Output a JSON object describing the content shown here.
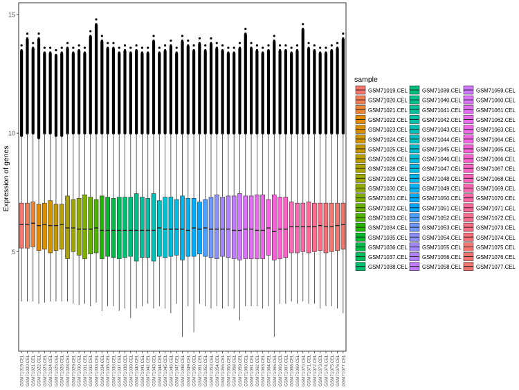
{
  "chart_data": {
    "type": "boxplot",
    "ylabel": "Expression of genes",
    "xlabel": "",
    "ylim": [
      0.8,
      15.5
    ],
    "yticks": [
      5,
      10,
      15
    ],
    "legend_title": "sample",
    "legend_position": "right",
    "grid": false,
    "categories": [
      "GSM71019.CEL",
      "GSM71020.CEL",
      "GSM71021.CEL",
      "GSM71022.CEL",
      "GSM71023.CEL",
      "GSM71024.CEL",
      "GSM71025.CEL",
      "GSM71026.CEL",
      "GSM71028.CEL",
      "GSM71029.CEL",
      "GSM71030.CEL",
      "GSM71031.CEL",
      "GSM71032.CEL",
      "GSM71033.CEL",
      "GSM71034.CEL",
      "GSM71035.CEL",
      "GSM71036.CEL",
      "GSM71037.CEL",
      "GSM71038.CEL",
      "GSM71039.CEL",
      "GSM71040.CEL",
      "GSM71041.CEL",
      "GSM71042.CEL",
      "GSM71043.CEL",
      "GSM71044.CEL",
      "GSM71045.CEL",
      "GSM71046.CEL",
      "GSM71047.CEL",
      "GSM71048.CEL",
      "GSM71049.CEL",
      "GSM71050.CEL",
      "GSM71051.CEL",
      "GSM71052.CEL",
      "GSM71053.CEL",
      "GSM71054.CEL",
      "GSM71055.CEL",
      "GSM71056.CEL",
      "GSM71058.CEL",
      "GSM71059.CEL",
      "GSM71060.CEL",
      "GSM71061.CEL",
      "GSM71062.CEL",
      "GSM71063.CEL",
      "GSM71064.CEL",
      "GSM71065.CEL",
      "GSM71066.CEL",
      "GSM71067.CEL",
      "GSM71068.CEL",
      "GSM71069.CEL",
      "GSM71070.CEL",
      "GSM71071.CEL",
      "GSM71072.CEL",
      "GSM71073.CEL",
      "GSM71074.CEL",
      "GSM71075.CEL",
      "GSM71076.CEL",
      "GSM71077.CEL"
    ],
    "colors": [
      "#F8766D",
      "#F27D52",
      "#EB8335",
      "#E38900",
      "#DA8F00",
      "#D09400",
      "#C59900",
      "#B99E00",
      "#ACA300",
      "#9EA700",
      "#8FAA00",
      "#7DAE00",
      "#68B100",
      "#4FB400",
      "#24B700",
      "#00B92A",
      "#00BB48",
      "#00BD5C",
      "#00BE6D",
      "#00C07D",
      "#00C08C",
      "#00C19A",
      "#00C1A8",
      "#00C1B5",
      "#00C0C2",
      "#00BFCE",
      "#00BDD9",
      "#00BAE3",
      "#00B6ED",
      "#00B2F6",
      "#00ACFC",
      "#00A6FF",
      "#4C9FFF",
      "#7198FF",
      "#8C90FF",
      "#A188FF",
      "#B383FF",
      "#C27CFF",
      "#CF78FF",
      "#DA72FB",
      "#E36EF6",
      "#EA6AF0",
      "#F066E9",
      "#F564E2",
      "#F963D9",
      "#FC63D0",
      "#FE64C6",
      "#FF65BC",
      "#FF66B1",
      "#FF68A6",
      "#FF6A9A",
      "#FE6C8F",
      "#FC6E84",
      "#FA7079",
      "#F8766D",
      "#F47570",
      "#F0766D"
    ],
    "series": [
      {
        "name": "GSM71019.CEL",
        "min": 2.9,
        "q1": 5.15,
        "median": 6.15,
        "q3": 7.05,
        "max": 9.9,
        "outlier_top": 13.7
      },
      {
        "name": "GSM71020.CEL",
        "min": 2.9,
        "q1": 5.15,
        "median": 6.15,
        "q3": 7.05,
        "max": 10.0,
        "outlier_top": 14.2
      },
      {
        "name": "GSM71021.CEL",
        "min": 2.9,
        "q1": 5.2,
        "median": 6.2,
        "q3": 7.1,
        "max": 10.0,
        "outlier_top": 13.8
      },
      {
        "name": "GSM71022.CEL",
        "min": 2.8,
        "q1": 5.05,
        "median": 6.1,
        "q3": 7.0,
        "max": 9.8,
        "outlier_top": 14.2
      },
      {
        "name": "GSM71023.CEL",
        "min": 2.85,
        "q1": 5.1,
        "median": 6.15,
        "q3": 7.05,
        "max": 10.0,
        "outlier_top": 13.6
      },
      {
        "name": "GSM71024.CEL",
        "min": 2.9,
        "q1": 4.95,
        "median": 6.1,
        "q3": 7.15,
        "max": 10.0,
        "outlier_top": 13.6
      },
      {
        "name": "GSM71025.CEL",
        "min": 2.9,
        "q1": 5.05,
        "median": 6.1,
        "q3": 7.0,
        "max": 9.9,
        "outlier_top": 13.5
      },
      {
        "name": "GSM71026.CEL",
        "min": 2.9,
        "q1": 5.1,
        "median": 6.15,
        "q3": 7.0,
        "max": 9.9,
        "outlier_top": 13.6
      },
      {
        "name": "GSM71028.CEL",
        "min": 2.9,
        "q1": 4.7,
        "median": 6.0,
        "q3": 7.35,
        "max": 10.0,
        "outlier_top": 13.8
      },
      {
        "name": "GSM71029.CEL",
        "min": 2.8,
        "q1": 5.0,
        "median": 6.0,
        "q3": 7.2,
        "max": 10.0,
        "outlier_top": 13.6
      },
      {
        "name": "GSM71030.CEL",
        "min": 2.75,
        "q1": 4.85,
        "median": 5.95,
        "q3": 7.25,
        "max": 10.0,
        "outlier_top": 13.7
      },
      {
        "name": "GSM71031.CEL",
        "min": 2.8,
        "q1": 4.7,
        "median": 5.95,
        "q3": 7.4,
        "max": 10.0,
        "outlier_top": 13.6
      },
      {
        "name": "GSM71032.CEL",
        "min": 2.7,
        "q1": 4.9,
        "median": 5.95,
        "q3": 7.3,
        "max": 10.0,
        "outlier_top": 14.3
      },
      {
        "name": "GSM71033.CEL",
        "min": 2.85,
        "q1": 4.95,
        "median": 6.0,
        "q3": 7.2,
        "max": 10.0,
        "outlier_top": 14.8
      },
      {
        "name": "GSM71034.CEL",
        "min": 2.5,
        "q1": 4.7,
        "median": 5.9,
        "q3": 7.35,
        "max": 10.0,
        "outlier_top": 14.1
      },
      {
        "name": "GSM71035.CEL",
        "min": 2.7,
        "q1": 4.8,
        "median": 5.9,
        "q3": 7.3,
        "max": 10.0,
        "outlier_top": 13.8
      },
      {
        "name": "GSM71036.CEL",
        "min": 2.7,
        "q1": 4.75,
        "median": 5.9,
        "q3": 7.25,
        "max": 10.0,
        "outlier_top": 13.8
      },
      {
        "name": "GSM71037.CEL",
        "min": 2.5,
        "q1": 4.7,
        "median": 5.9,
        "q3": 7.3,
        "max": 10.0,
        "outlier_top": 13.6
      },
      {
        "name": "GSM71038.CEL",
        "min": 2.6,
        "q1": 4.75,
        "median": 5.9,
        "q3": 7.3,
        "max": 10.0,
        "outlier_top": 13.7
      },
      {
        "name": "GSM71039.CEL",
        "min": 2.2,
        "q1": 4.8,
        "median": 5.9,
        "q3": 7.3,
        "max": 10.0,
        "outlier_top": 13.6
      },
      {
        "name": "GSM71040.CEL",
        "min": 2.6,
        "q1": 4.6,
        "median": 5.9,
        "q3": 7.45,
        "max": 10.0,
        "outlier_top": 13.7
      },
      {
        "name": "GSM71041.CEL",
        "min": 2.7,
        "q1": 4.75,
        "median": 5.9,
        "q3": 7.3,
        "max": 10.0,
        "outlier_top": 13.6
      },
      {
        "name": "GSM71042.CEL",
        "min": 2.8,
        "q1": 4.75,
        "median": 5.9,
        "q3": 7.25,
        "max": 10.0,
        "outlier_top": 13.6
      },
      {
        "name": "GSM71043.CEL",
        "min": 2.6,
        "q1": 4.6,
        "median": 5.9,
        "q3": 7.45,
        "max": 10.0,
        "outlier_top": 14.1
      },
      {
        "name": "GSM71044.CEL",
        "min": 2.7,
        "q1": 4.8,
        "median": 6.0,
        "q3": 7.15,
        "max": 10.0,
        "outlier_top": 13.6
      },
      {
        "name": "GSM71045.CEL",
        "min": 2.6,
        "q1": 4.75,
        "median": 5.95,
        "q3": 7.3,
        "max": 10.0,
        "outlier_top": 13.7
      },
      {
        "name": "GSM71046.CEL",
        "min": 2.4,
        "q1": 4.8,
        "median": 5.95,
        "q3": 7.3,
        "max": 10.0,
        "outlier_top": 13.9
      },
      {
        "name": "GSM71047.CEL",
        "min": 2.8,
        "q1": 4.85,
        "median": 5.95,
        "q3": 7.2,
        "max": 10.0,
        "outlier_top": 13.6
      },
      {
        "name": "GSM71048.CEL",
        "min": 1.4,
        "q1": 4.65,
        "median": 5.95,
        "q3": 7.35,
        "max": 10.0,
        "outlier_top": 14.1
      },
      {
        "name": "GSM71049.CEL",
        "min": 2.7,
        "q1": 4.8,
        "median": 5.9,
        "q3": 7.25,
        "max": 10.0,
        "outlier_top": 13.9
      },
      {
        "name": "GSM71050.CEL",
        "min": 1.6,
        "q1": 4.8,
        "median": 6.0,
        "q3": 7.25,
        "max": 10.0,
        "outlier_top": 13.7
      },
      {
        "name": "GSM71051.CEL",
        "min": 2.8,
        "q1": 4.9,
        "median": 5.95,
        "q3": 7.1,
        "max": 10.0,
        "outlier_top": 14.0
      },
      {
        "name": "GSM71052.CEL",
        "min": 2.7,
        "q1": 4.8,
        "median": 6.0,
        "q3": 7.2,
        "max": 10.0,
        "outlier_top": 13.7
      },
      {
        "name": "GSM71053.CEL",
        "min": 2.6,
        "q1": 4.75,
        "median": 5.95,
        "q3": 7.3,
        "max": 10.0,
        "outlier_top": 14.0
      },
      {
        "name": "GSM71054.CEL",
        "min": 2.7,
        "q1": 4.7,
        "median": 5.95,
        "q3": 7.4,
        "max": 10.0,
        "outlier_top": 13.8
      },
      {
        "name": "GSM71055.CEL",
        "min": 2.6,
        "q1": 4.8,
        "median": 5.95,
        "q3": 7.3,
        "max": 10.0,
        "outlier_top": 13.7
      },
      {
        "name": "GSM71056.CEL",
        "min": 2.7,
        "q1": 4.75,
        "median": 5.95,
        "q3": 7.35,
        "max": 10.0,
        "outlier_top": 13.6
      },
      {
        "name": "GSM71058.CEL",
        "min": 2.6,
        "q1": 4.7,
        "median": 5.9,
        "q3": 7.35,
        "max": 10.0,
        "outlier_top": 13.6
      },
      {
        "name": "GSM71059.CEL",
        "min": 2.1,
        "q1": 4.65,
        "median": 5.9,
        "q3": 7.45,
        "max": 10.0,
        "outlier_top": 13.8
      },
      {
        "name": "GSM71060.CEL",
        "min": 2.7,
        "q1": 4.7,
        "median": 5.95,
        "q3": 7.35,
        "max": 10.0,
        "outlier_top": 14.4
      },
      {
        "name": "GSM71061.CEL",
        "min": 2.7,
        "q1": 4.7,
        "median": 5.95,
        "q3": 7.35,
        "max": 10.0,
        "outlier_top": 13.8
      },
      {
        "name": "GSM71062.CEL",
        "min": 2.7,
        "q1": 4.7,
        "median": 5.9,
        "q3": 7.4,
        "max": 10.0,
        "outlier_top": 13.7
      },
      {
        "name": "GSM71063.CEL",
        "min": 2.6,
        "q1": 4.7,
        "median": 5.9,
        "q3": 7.4,
        "max": 10.0,
        "outlier_top": 13.6
      },
      {
        "name": "GSM71064.CEL",
        "min": 2.7,
        "q1": 4.85,
        "median": 6.0,
        "q3": 7.2,
        "max": 10.0,
        "outlier_top": 13.7
      },
      {
        "name": "GSM71065.CEL",
        "min": 1.4,
        "q1": 4.65,
        "median": 5.85,
        "q3": 7.4,
        "max": 10.0,
        "outlier_top": 14.1
      },
      {
        "name": "GSM71066.CEL",
        "min": 2.8,
        "q1": 4.7,
        "median": 5.95,
        "q3": 7.3,
        "max": 10.0,
        "outlier_top": 13.7
      },
      {
        "name": "GSM71067.CEL",
        "min": 2.8,
        "q1": 4.75,
        "median": 5.95,
        "q3": 7.3,
        "max": 10.0,
        "outlier_top": 13.7
      },
      {
        "name": "GSM71068.CEL",
        "min": 2.9,
        "q1": 4.95,
        "median": 6.05,
        "q3": 7.1,
        "max": 10.0,
        "outlier_top": 13.6
      },
      {
        "name": "GSM71069.CEL",
        "min": 2.8,
        "q1": 4.95,
        "median": 6.05,
        "q3": 7.05,
        "max": 10.0,
        "outlier_top": 13.7
      },
      {
        "name": "GSM71070.CEL",
        "min": 2.9,
        "q1": 5.0,
        "median": 6.05,
        "q3": 7.05,
        "max": 10.0,
        "outlier_top": 14.6
      },
      {
        "name": "GSM71071.CEL",
        "min": 2.8,
        "q1": 4.95,
        "median": 6.05,
        "q3": 7.1,
        "max": 10.0,
        "outlier_top": 13.8
      },
      {
        "name": "GSM71072.CEL",
        "min": 2.8,
        "q1": 5.0,
        "median": 6.05,
        "q3": 7.05,
        "max": 10.0,
        "outlier_top": 13.7
      },
      {
        "name": "GSM71073.CEL",
        "min": 2.6,
        "q1": 5.05,
        "median": 6.1,
        "q3": 7.05,
        "max": 10.0,
        "outlier_top": 13.6
      },
      {
        "name": "GSM71074.CEL",
        "min": 2.7,
        "q1": 4.95,
        "median": 6.05,
        "q3": 7.05,
        "max": 10.0,
        "outlier_top": 13.6
      },
      {
        "name": "GSM71075.CEL",
        "min": 2.7,
        "q1": 5.0,
        "median": 6.05,
        "q3": 7.05,
        "max": 10.0,
        "outlier_top": 13.7
      },
      {
        "name": "GSM71076.CEL",
        "min": 2.6,
        "q1": 5.05,
        "median": 6.1,
        "q3": 7.05,
        "max": 10.0,
        "outlier_top": 13.8
      },
      {
        "name": "GSM71077.CEL",
        "min": 2.4,
        "q1": 5.1,
        "median": 6.15,
        "q3": 7.05,
        "max": 10.0,
        "outlier_top": 14.2
      }
    ],
    "legend_entries": [
      "GSM71019.CEL",
      "GSM71020.CEL",
      "GSM71021.CEL",
      "GSM71022.CEL",
      "GSM71023.CEL",
      "GSM71024.CEL",
      "GSM71025.CEL",
      "GSM71026.CEL",
      "GSM71028.CEL",
      "GSM71029.CEL",
      "GSM71030.CEL",
      "GSM71031.CEL",
      "GSM71032.CEL",
      "GSM71033.CEL",
      "GSM71034.CEL",
      "GSM71035.CEL",
      "GSM71036.CEL",
      "GSM71037.CEL",
      "GSM71038.CEL",
      "GSM71039.CEL",
      "GSM71040.CEL",
      "GSM71041.CEL",
      "GSM71042.CEL",
      "GSM71043.CEL",
      "GSM71044.CEL",
      "GSM71045.CEL",
      "GSM71046.CEL",
      "GSM71047.CEL",
      "GSM71048.CEL",
      "GSM71049.CEL",
      "GSM71050.CEL",
      "GSM71051.CEL",
      "GSM71052.CEL",
      "GSM71053.CEL",
      "GSM71054.CEL",
      "GSM71055.CEL",
      "GSM71056.CEL",
      "GSM71058.CEL",
      "GSM71059.CEL",
      "GSM71060.CEL",
      "GSM71061.CEL",
      "GSM71062.CEL",
      "GSM71063.CEL",
      "GSM71064.CEL",
      "GSM71065.CEL",
      "GSM71066.CEL",
      "GSM71067.CEL",
      "GSM71068.CEL",
      "GSM71069.CEL",
      "GSM71070.CEL",
      "GSM71071.CEL",
      "GSM71072.CEL",
      "GSM71073.CEL",
      "GSM71074.CEL",
      "GSM71075.CEL",
      "GSM71076.CEL",
      "GSM71077.CEL"
    ]
  }
}
